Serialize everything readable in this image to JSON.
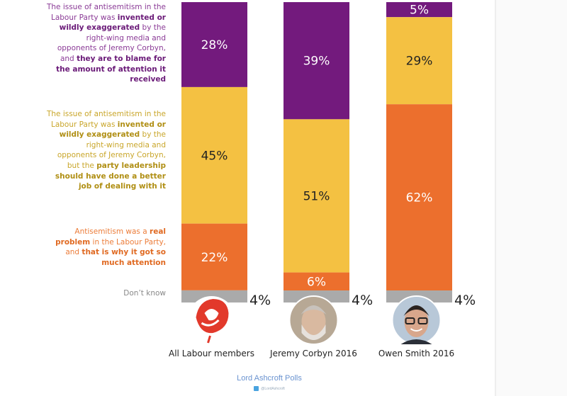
{
  "chart_data": {
    "type": "bar",
    "stacked": true,
    "orientation": "vertical",
    "categories": [
      "All Labour members",
      "Jeremy Corbyn 2016",
      "Owen Smith 2016"
    ],
    "series": [
      {
        "name": "The issue of antisemitism in the Labour Party was invented or wildly exaggerated by the right-wing media and opponents of Jeremy Corbyn, and they are to blame for the amount of attention it received",
        "color": "#731a7d",
        "label_color": "#ffffff",
        "values": [
          28,
          39,
          5
        ]
      },
      {
        "name": "The issue of antisemitism in the Labour Party was invented or wildly exaggerated by the right-wing media and opponents of Jeremy Corbyn, but the party leadership should have done a better job of dealing with it",
        "color": "#f4c142",
        "label_color": "#222222",
        "values": [
          45,
          51,
          29
        ]
      },
      {
        "name": "Antisemitism was a real problem in the Labour Party, and that is why it got so much attention",
        "color": "#ec6f2d",
        "label_color": "#ffffff",
        "values": [
          22,
          6,
          62
        ]
      },
      {
        "name": "Don't know",
        "color": "#aaaaaa",
        "label_color": "#222222",
        "values": [
          4,
          4,
          4
        ]
      }
    ],
    "value_format": "{v}%",
    "ylim": [
      0,
      100
    ],
    "grid": false,
    "legend": "left",
    "title": "",
    "xlabel": "",
    "ylabel": ""
  },
  "legend": [
    {
      "color": "#8a3a96",
      "strong_color": "#6a1a78",
      "parts": [
        {
          "t": "The issue of antisemitism in the Labour Party was ",
          "b": false
        },
        {
          "t": "invented or wildly exaggerated",
          "b": true
        },
        {
          "t": " by the right-wing media and opponents of Jeremy Corbyn, and ",
          "b": false
        },
        {
          "t": "they are to blame for the amount of attention it received",
          "b": true
        }
      ]
    },
    {
      "color": "#c9a62a",
      "strong_color": "#b08f14",
      "parts": [
        {
          "t": "The issue of antisemitism in the Labour Party was ",
          "b": false
        },
        {
          "t": "invented or wildly exaggerated",
          "b": true
        },
        {
          "t": " by the right-wing media and opponents of Jeremy Corbyn, but the ",
          "b": false
        },
        {
          "t": "party leadership should have done a better job of dealing with it",
          "b": true
        }
      ]
    },
    {
      "color": "#ec7d3a",
      "strong_color": "#e06a22",
      "parts": [
        {
          "t": "Antisemitism was a ",
          "b": false
        },
        {
          "t": "real problem",
          "b": true
        },
        {
          "t": " in the Labour Party, and ",
          "b": false
        },
        {
          "t": "that is why it got so much attention",
          "b": true
        }
      ]
    },
    {
      "color": "#888888",
      "strong_color": "#888888",
      "parts": [
        {
          "t": "Don’t know",
          "b": false
        }
      ]
    }
  ],
  "avatars": [
    {
      "name": "labour-rose-logo-icon",
      "kind": "rose"
    },
    {
      "name": "jeremy-corbyn-photo",
      "kind": "person-grey"
    },
    {
      "name": "owen-smith-photo",
      "kind": "person-glasses"
    }
  ],
  "footer": {
    "title": "Lord Ashcroft Polls",
    "handle": "@LordAshcroft",
    "icon": "twitter-icon"
  }
}
